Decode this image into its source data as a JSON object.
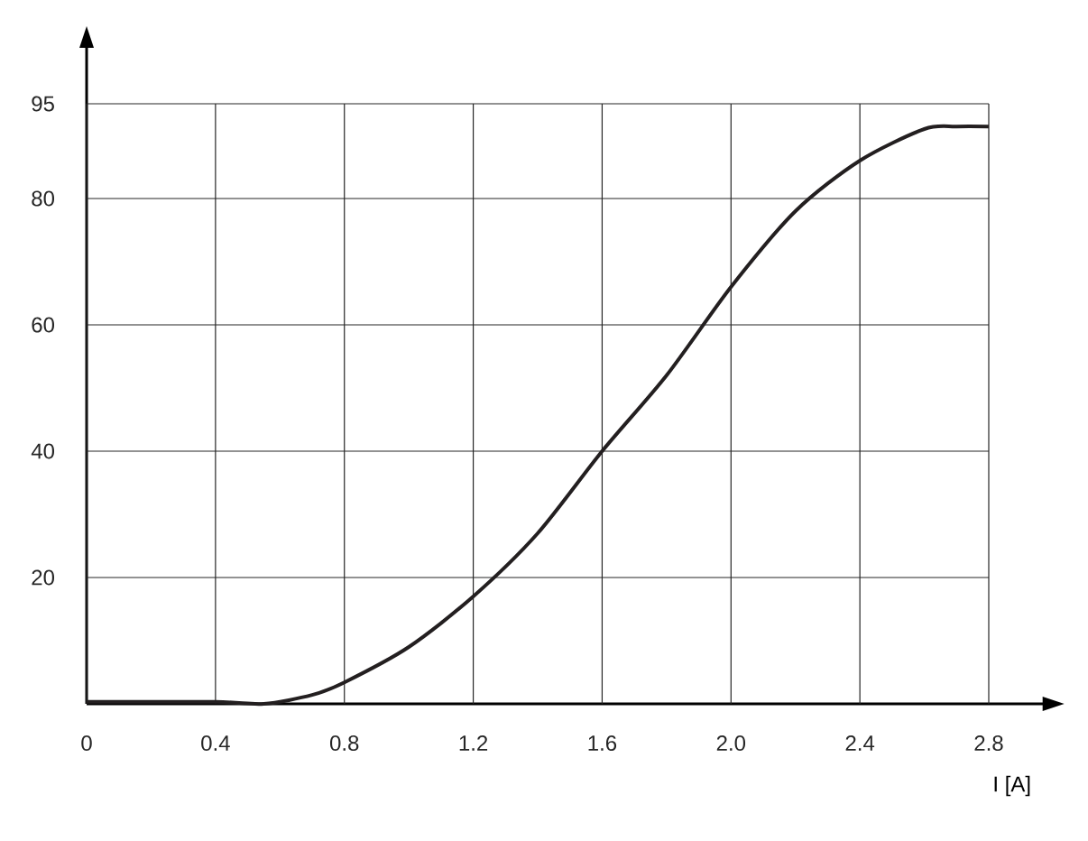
{
  "chart_data": {
    "type": "line",
    "xlabel": "I [A]",
    "x": [
      0,
      0.4,
      0.55,
      0.7,
      0.8,
      1.0,
      1.2,
      1.4,
      1.6,
      1.8,
      2.0,
      2.2,
      2.4,
      2.6,
      2.7,
      2.8
    ],
    "series": [
      {
        "color": "#231f20",
        "values": [
          0.3,
          0.3,
          0,
          1.4,
          3.4,
          9,
          17,
          27,
          40,
          52,
          66,
          78,
          86,
          91,
          91.4,
          91.4
        ]
      }
    ],
    "xlim": [
      0,
      2.97
    ],
    "ylim": [
      0,
      104
    ],
    "xticks": [
      0,
      0.4,
      0.8,
      1.2,
      1.6,
      {
        "value": 2.0,
        "label": "2.0"
      },
      2.4,
      2.8
    ],
    "yticks": [
      20,
      40,
      60,
      80,
      95
    ],
    "grid": true,
    "marker": "none",
    "line_style": "solid"
  }
}
